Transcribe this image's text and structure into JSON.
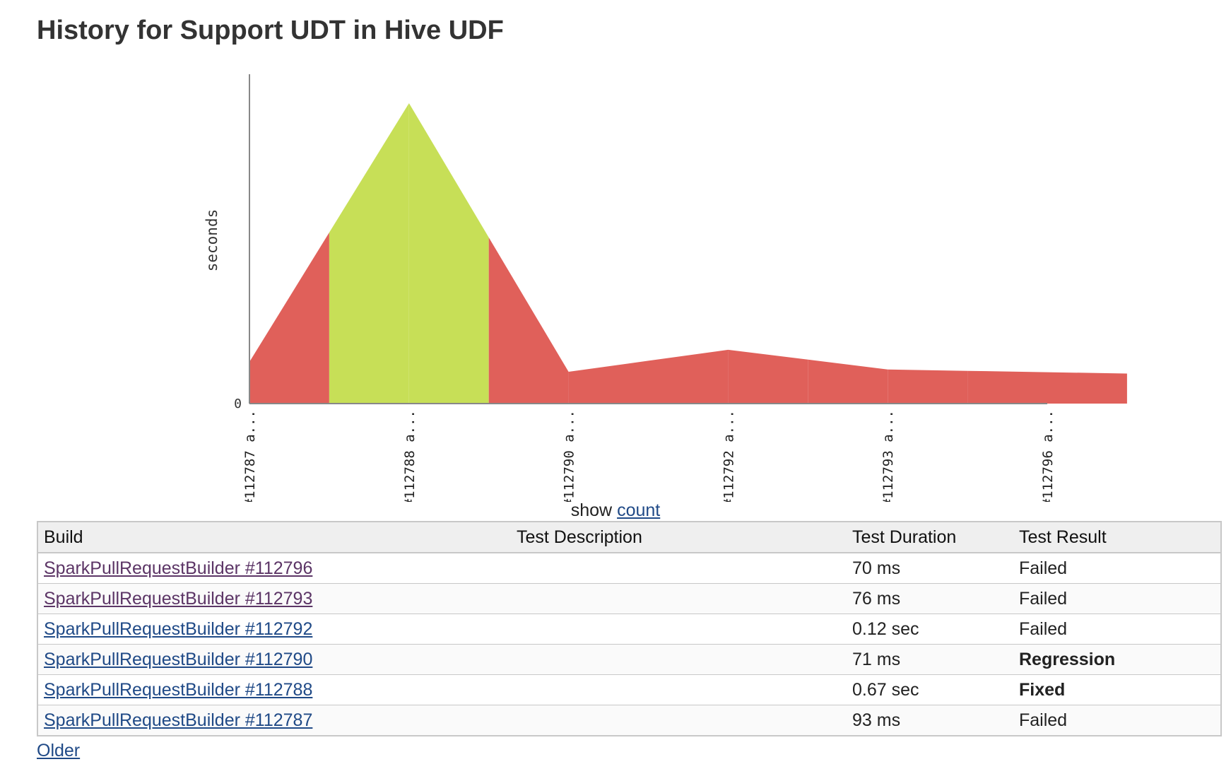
{
  "page": {
    "title": "History for Support UDT in Hive UDF"
  },
  "chart_data": {
    "type": "area",
    "title": "",
    "ylabel": "seconds",
    "xlabel": "",
    "y_tick_labels": [
      "0"
    ],
    "ylim": [
      0,
      0.7
    ],
    "categories": [
      "#112787 a...",
      "#112788 a...",
      "#112790 a...",
      "#112792 a...",
      "#112793 a...",
      "#112796 a..."
    ],
    "values": [
      0.093,
      0.67,
      0.071,
      0.12,
      0.076,
      0.07
    ],
    "segment_status": [
      "failed",
      "passed",
      "passed",
      "failed",
      "failed",
      "failed",
      "failed",
      "failed",
      "failed",
      "failed",
      "failed"
    ],
    "colors": {
      "failed": "#e0605a",
      "passed": "#c7df57",
      "axis": "#888888"
    },
    "grid": false,
    "legend": "none"
  },
  "show_count": {
    "prefix": "show",
    "link": "count"
  },
  "table": {
    "headers": [
      "Build",
      "Test Description",
      "Test Duration",
      "Test Result"
    ],
    "rows": [
      {
        "build": "SparkPullRequestBuilder #112796",
        "description": "",
        "duration": "70 ms",
        "result": "Failed",
        "status": "failed",
        "visited": true
      },
      {
        "build": "SparkPullRequestBuilder #112793",
        "description": "",
        "duration": "76 ms",
        "result": "Failed",
        "status": "failed",
        "visited": true
      },
      {
        "build": "SparkPullRequestBuilder #112792",
        "description": "",
        "duration": "0.12 sec",
        "result": "Failed",
        "status": "failed",
        "visited": false
      },
      {
        "build": "SparkPullRequestBuilder #112790",
        "description": "",
        "duration": "71 ms",
        "result": "Regression",
        "status": "regression",
        "visited": false
      },
      {
        "build": "SparkPullRequestBuilder #112788",
        "description": "",
        "duration": "0.67 sec",
        "result": "Fixed",
        "status": "fixed",
        "visited": false
      },
      {
        "build": "SparkPullRequestBuilder #112787",
        "description": "",
        "duration": "93 ms",
        "result": "Failed",
        "status": "failed",
        "visited": false
      }
    ]
  },
  "older_link": "Older"
}
